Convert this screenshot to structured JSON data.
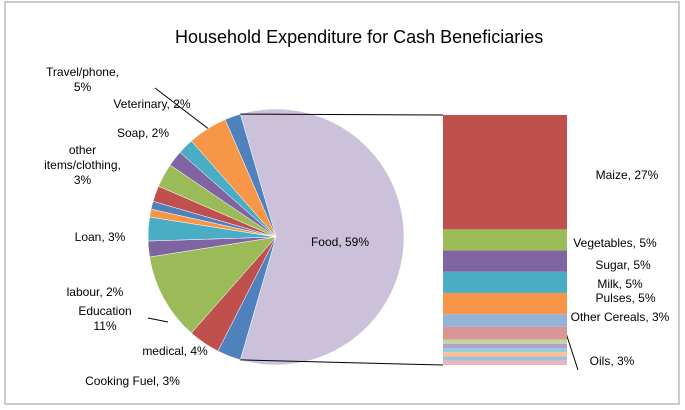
{
  "chart_data": {
    "type": "bar-of-pie",
    "title": "Household Expenditure for Cash Beneficiaries",
    "pie": {
      "values": [
        59,
        3,
        4,
        11,
        2,
        3,
        1,
        1,
        2,
        3,
        2,
        2,
        5,
        2
      ],
      "value_labels": [
        "Food, 59%",
        "Cooking Fuel, 3%",
        "medical, 4%",
        "Education 11%",
        "labour, 2%",
        "Loan, 3%",
        null,
        null,
        null,
        "other items/clothing, 3%",
        null,
        "Soap, 2%",
        "Travel/phone, 5%",
        "Veterinary, 2%"
      ],
      "colors": [
        "#ccc1da",
        "#4f81bd",
        "#c0504d",
        "#9bbb59",
        "#8064a2",
        "#4bacc6",
        "#f79646",
        "#4f81bd",
        "#c0504d",
        "#9bbb59",
        "#8064a2",
        "#4bacc6",
        "#f79646",
        "#4f81bd"
      ]
    },
    "bar": {
      "values": [
        27,
        5,
        5,
        5,
        5,
        3,
        3,
        1,
        1,
        1,
        1,
        1,
        1
      ],
      "value_labels": [
        "Maize, 27%",
        "Vegetables, 5%",
        "Sugar, 5%",
        "Milk, 5%",
        "Pulses, 5%",
        "Other Cereals, 3%",
        "Oils, 3%",
        null,
        null,
        null,
        null,
        null,
        null
      ],
      "colors": [
        "#c0504d",
        "#9bbb59",
        "#8064a2",
        "#4bacc6",
        "#f79646",
        "#95b3d7",
        "#d99694",
        "#c3d69b",
        "#b3a2c7",
        "#93cddd",
        "#fac090",
        "#a6bddb",
        "#e6b9b8"
      ]
    }
  }
}
